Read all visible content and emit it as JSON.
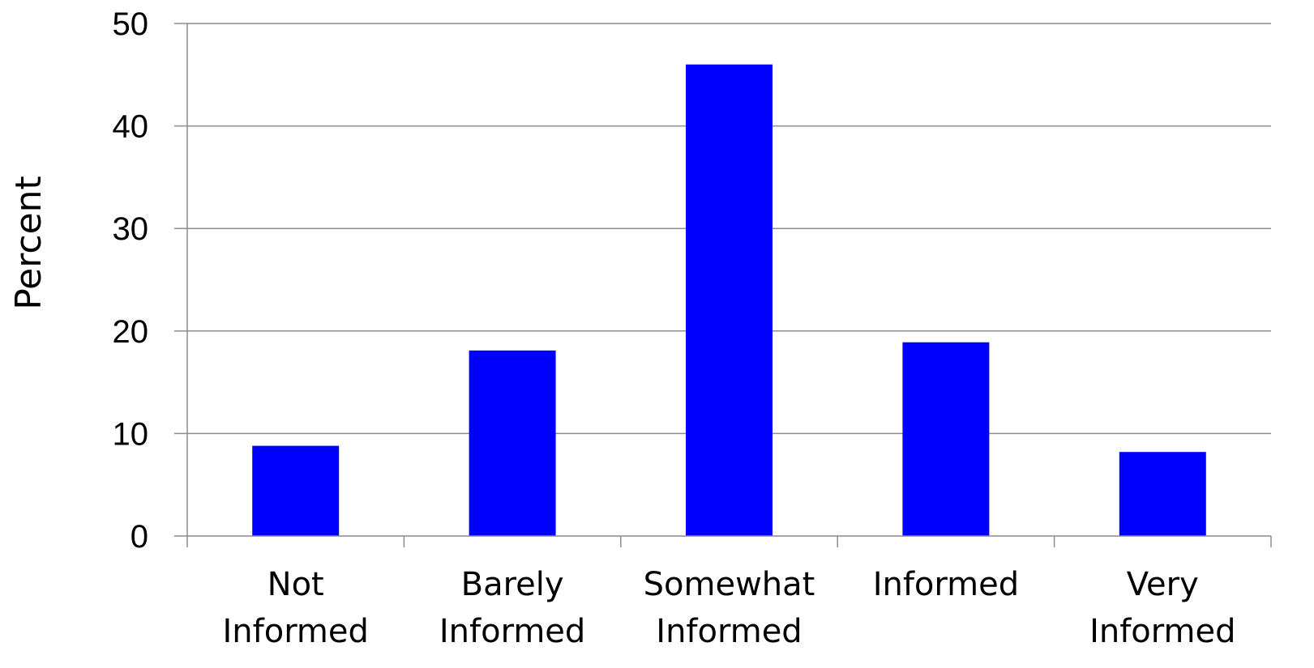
{
  "chart_data": {
    "type": "bar",
    "categories": [
      [
        "Not",
        "Informed"
      ],
      [
        "Barely",
        "Informed"
      ],
      [
        "Somewhat",
        "Informed"
      ],
      [
        "Informed"
      ],
      [
        "Very",
        "Informed"
      ]
    ],
    "values": [
      8.8,
      18.1,
      46.0,
      18.9,
      8.2
    ],
    "ylabel": "Percent",
    "xlabel": "",
    "ylim": [
      0,
      50
    ],
    "yticks": [
      0,
      10,
      20,
      30,
      40,
      50
    ],
    "grid": true,
    "bar_color": "#0000ff",
    "grid_color": "#8c8c8c",
    "axis_color": "#8c8c8c"
  }
}
